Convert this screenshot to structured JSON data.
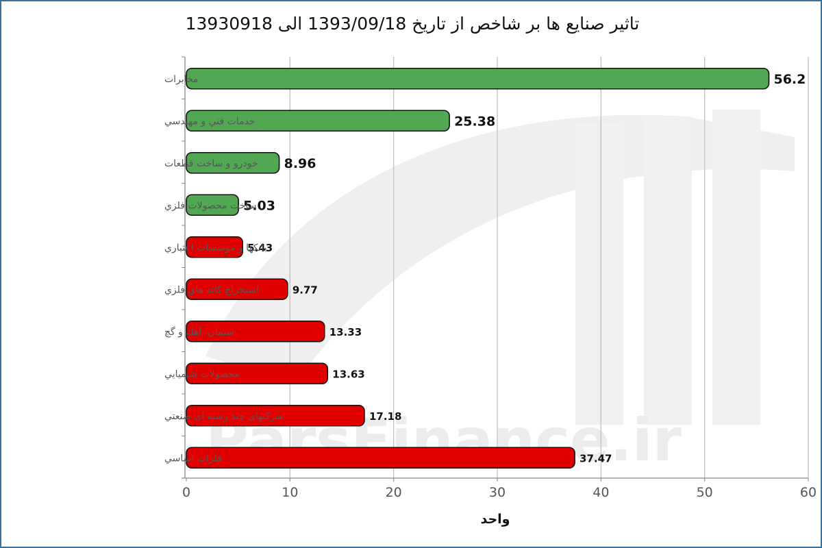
{
  "chart_data": {
    "type": "bar",
    "orientation": "horizontal",
    "title": "تاثیر صنایع ها بر شاخص از تاریخ 1393/09/18 الی 13930918",
    "xlabel": "واحد",
    "ylabel": "",
    "xlim": [
      0,
      60
    ],
    "x_ticks": [
      "0",
      "10",
      "20",
      "30",
      "40",
      "50",
      "60"
    ],
    "grid": "vertical",
    "legend": "none",
    "categories": [
      "مخابرات",
      "خدمات فني و مهندسي",
      "خودرو و ساخت قطعات",
      "ساخت محصولات فلزي",
      "بانكها و موسسات اعتباري",
      "استخراج كانه هاي فلزي",
      "سيمان، آهك و گچ",
      "محصولات شيميايي",
      "شركتهاي چند رشته اي صنعتي",
      "فلزات اساسي"
    ],
    "values": [
      56.2,
      25.38,
      8.96,
      5.03,
      5.43,
      9.77,
      13.33,
      13.63,
      17.18,
      37.47
    ],
    "value_labels": [
      "56.2",
      "25.38",
      "8.96",
      "5.03",
      "5.43",
      "9.77",
      "13.33",
      "13.63",
      "17.18",
      "37.47"
    ],
    "direction": [
      "positive",
      "positive",
      "positive",
      "positive",
      "negative",
      "negative",
      "negative",
      "negative",
      "negative",
      "negative"
    ],
    "colors": {
      "positive": "#52a852",
      "negative": "#e00000",
      "bar_border": "#111111",
      "grid": "#c0c0c0",
      "axis": "#888888",
      "category_text": "#555555",
      "tick_text": "#555555",
      "frame": "#3f6fa0"
    }
  },
  "watermark": {
    "text": "ParsFinance.ir"
  }
}
